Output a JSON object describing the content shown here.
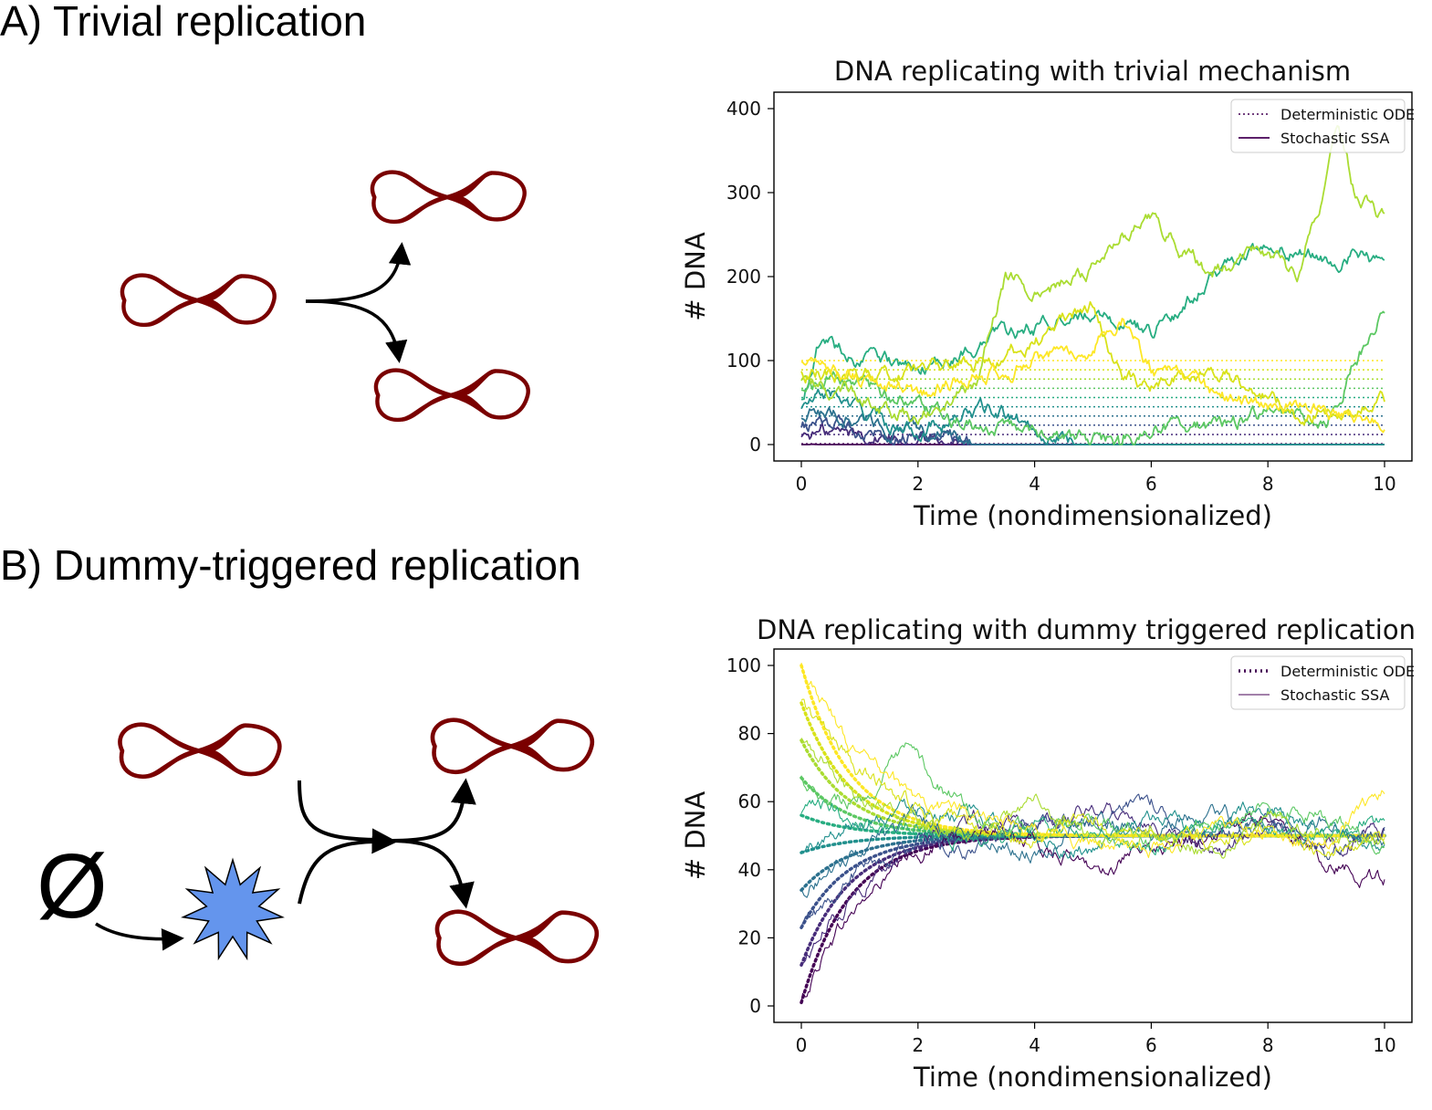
{
  "panels": {
    "a_title": "A) Trivial replication",
    "b_title": "B) Dummy-triggered replication"
  },
  "diagram": {
    "null_symbol": "Ø",
    "dna_color": "#7a0000",
    "dummy_color": "#6495ed",
    "icons": [
      "dna-plasmid-icon",
      "dummy-star-icon",
      "null-species-icon",
      "reaction-arrow-icon"
    ]
  },
  "colors": {
    "viridis": [
      "#440154",
      "#472c7a",
      "#3b518b",
      "#2c718e",
      "#21908d",
      "#27ad81",
      "#5cc863",
      "#aadc32",
      "#d8e219",
      "#fde725"
    ]
  },
  "chart_data": [
    {
      "type": "line",
      "title": "DNA replicating with trivial mechanism",
      "xlabel": "Time (nondimensionalized)",
      "ylabel": "# DNA",
      "xlim": [
        0,
        10
      ],
      "ylim": [
        0,
        400
      ],
      "xticks": [
        "0",
        "2",
        "4",
        "6",
        "8",
        "10"
      ],
      "yticks": [
        "0",
        "100",
        "200",
        "300",
        "400"
      ],
      "legend_position": "top-right",
      "legend": [
        "Deterministic ODE",
        "Stochastic SSA"
      ],
      "initial_values": [
        1,
        12,
        23,
        34,
        45,
        56,
        67,
        78,
        89,
        100
      ],
      "deterministic_note": "deterministic curves stay constant at initial values",
      "stochastic_series": [
        {
          "color_index": 0,
          "x": [
            0,
            0.3,
            1,
            10
          ],
          "y": [
            1,
            0,
            0,
            0
          ]
        },
        {
          "color_index": 1,
          "x": [
            0,
            0.5,
            1.5,
            2.5,
            3.0,
            10
          ],
          "y": [
            12,
            15,
            10,
            5,
            0,
            0
          ]
        },
        {
          "color_index": 2,
          "x": [
            0,
            0.5,
            1,
            2,
            2.6,
            3.2,
            10
          ],
          "y": [
            23,
            25,
            20,
            15,
            10,
            0,
            0
          ]
        },
        {
          "color_index": 3,
          "x": [
            0,
            0.3,
            1,
            1.8,
            2.5,
            3.0,
            10
          ],
          "y": [
            34,
            40,
            30,
            15,
            10,
            0,
            0
          ]
        },
        {
          "color_index": 4,
          "x": [
            0,
            0.5,
            1,
            1.5,
            2,
            3,
            3.5,
            4,
            4.5,
            4.8,
            10
          ],
          "y": [
            45,
            60,
            40,
            25,
            20,
            40,
            35,
            20,
            10,
            0,
            0
          ]
        },
        {
          "color_index": 5,
          "x": [
            0,
            0.3,
            1,
            2,
            3,
            4,
            5,
            6,
            7,
            8,
            9,
            9.5,
            10
          ],
          "y": [
            56,
            120,
            100,
            90,
            120,
            140,
            160,
            130,
            200,
            240,
            220,
            230,
            210
          ]
        },
        {
          "color_index": 6,
          "x": [
            0,
            0.5,
            1.5,
            2,
            3,
            4,
            5,
            5.5,
            6,
            6.5,
            7,
            8,
            9,
            9.5,
            10
          ],
          "y": [
            67,
            80,
            60,
            40,
            20,
            10,
            5,
            0,
            20,
            25,
            20,
            40,
            30,
            100,
            160
          ]
        },
        {
          "color_index": 7,
          "x": [
            0,
            1,
            2,
            3,
            3.5,
            4,
            5,
            5.5,
            6,
            7,
            8,
            8.5,
            9,
            9.2,
            9.5,
            10
          ],
          "y": [
            78,
            60,
            30,
            80,
            200,
            180,
            210,
            250,
            270,
            200,
            230,
            200,
            320,
            390,
            300,
            270
          ]
        },
        {
          "color_index": 8,
          "x": [
            0,
            1,
            2,
            3,
            4,
            5,
            5.5,
            6,
            7,
            8,
            8.5,
            9,
            10
          ],
          "y": [
            89,
            80,
            90,
            100,
            120,
            170,
            80,
            70,
            90,
            60,
            30,
            40,
            50
          ]
        },
        {
          "color_index": 9,
          "x": [
            0,
            0.5,
            1,
            1.5,
            2,
            3,
            4,
            5,
            5.5,
            6,
            7,
            8,
            9,
            10
          ],
          "y": [
            100,
            90,
            80,
            70,
            60,
            80,
            100,
            120,
            150,
            90,
            60,
            50,
            40,
            35
          ]
        }
      ]
    },
    {
      "type": "line",
      "title": "DNA replicating with dummy triggered replication",
      "xlabel": "Time (nondimensionalized)",
      "ylabel": "# DNA",
      "xlim": [
        0,
        10
      ],
      "ylim": [
        0,
        100
      ],
      "xticks": [
        "0",
        "2",
        "4",
        "6",
        "8",
        "10"
      ],
      "yticks": [
        "0",
        "20",
        "40",
        "60",
        "80",
        "100"
      ],
      "legend_position": "top-right",
      "legend": [
        "Deterministic ODE",
        "Stochastic SSA"
      ],
      "initial_values": [
        1,
        12,
        23,
        34,
        45,
        56,
        67,
        78,
        89,
        100
      ],
      "steady_state": 50,
      "relaxation_rate": 1.2,
      "stochastic_series": [
        {
          "color_index": 0,
          "x": [
            0,
            0.5,
            1,
            1.5,
            2,
            3,
            4,
            5,
            6,
            7,
            8,
            9,
            10
          ],
          "y": [
            1,
            20,
            30,
            38,
            45,
            52,
            48,
            40,
            45,
            50,
            55,
            42,
            38
          ]
        },
        {
          "color_index": 1,
          "x": [
            0,
            0.5,
            1,
            2,
            3,
            4,
            5,
            6,
            7,
            8,
            9,
            10
          ],
          "y": [
            12,
            25,
            35,
            48,
            55,
            50,
            58,
            55,
            45,
            52,
            48,
            50
          ]
        },
        {
          "color_index": 2,
          "x": [
            0,
            0.5,
            1,
            2,
            3,
            4,
            5,
            6,
            7,
            8,
            9,
            10
          ],
          "y": [
            23,
            30,
            40,
            48,
            45,
            55,
            52,
            60,
            48,
            55,
            45,
            52
          ]
        },
        {
          "color_index": 3,
          "x": [
            0,
            0.5,
            1,
            2,
            3,
            4,
            5,
            6,
            7,
            8,
            9,
            10
          ],
          "y": [
            34,
            40,
            45,
            55,
            50,
            45,
            55,
            50,
            58,
            50,
            55,
            48
          ]
        },
        {
          "color_index": 4,
          "x": [
            0,
            0.5,
            1,
            2,
            3,
            4,
            5,
            6,
            7,
            8,
            9,
            10
          ],
          "y": [
            45,
            50,
            55,
            60,
            55,
            50,
            45,
            55,
            50,
            60,
            50,
            45
          ]
        },
        {
          "color_index": 5,
          "x": [
            0,
            0.5,
            1,
            2,
            3,
            4,
            5,
            6,
            7,
            8,
            9,
            10
          ],
          "y": [
            56,
            58,
            55,
            52,
            48,
            55,
            50,
            45,
            55,
            52,
            48,
            55
          ]
        },
        {
          "color_index": 6,
          "x": [
            0,
            0.5,
            1,
            1.8,
            3,
            4,
            5,
            6,
            7,
            8,
            9,
            10
          ],
          "y": [
            67,
            62,
            60,
            74,
            55,
            50,
            55,
            48,
            52,
            60,
            55,
            45
          ]
        },
        {
          "color_index": 7,
          "x": [
            0,
            0.5,
            1,
            2,
            3,
            4,
            5,
            6,
            7,
            8,
            9,
            10
          ],
          "y": [
            78,
            70,
            62,
            55,
            50,
            60,
            48,
            52,
            45,
            55,
            50,
            48
          ]
        },
        {
          "color_index": 8,
          "x": [
            0,
            0.5,
            1,
            2,
            3,
            4,
            5,
            6,
            7,
            8,
            9,
            10
          ],
          "y": [
            89,
            78,
            68,
            58,
            52,
            48,
            55,
            50,
            48,
            52,
            45,
            50
          ]
        },
        {
          "color_index": 9,
          "x": [
            0,
            0.5,
            1,
            2,
            3,
            4,
            5,
            6,
            7,
            8,
            9,
            10
          ],
          "y": [
            100,
            85,
            72,
            60,
            55,
            50,
            48,
            45,
            52,
            50,
            48,
            65
          ]
        }
      ]
    }
  ]
}
